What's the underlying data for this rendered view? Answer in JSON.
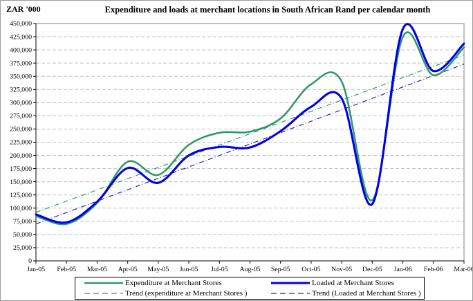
{
  "figure": {
    "unit_label": "ZAR '000",
    "title": "Expenditure and loads at merchant locations in South African Rand per calendar month"
  },
  "chart_data": {
    "type": "line",
    "title": "Expenditure and loads at merchant locations in South African Rand per calendar month",
    "ylabel": "ZAR '000",
    "xlabel": "",
    "ylim": [
      0,
      450000
    ],
    "ytick_step": 25000,
    "grid": "horizontal-dashed",
    "legend_position": "bottom-boxed",
    "categories": [
      "Jan-05",
      "Feb-05",
      "Mar-05",
      "Apr-05",
      "May-05",
      "Jun-05",
      "Jul-05",
      "Aug-05",
      "Sep-05",
      "Oct-05",
      "Nov-05",
      "Dec-05",
      "Jan-06",
      "Feb-06",
      "Mar-06"
    ],
    "series": [
      {
        "name": "Expenditure at Merchant Stores",
        "style": "solid-smooth",
        "color": "#339966",
        "width": 2.6,
        "values": [
          85000,
          70000,
          110000,
          188000,
          163000,
          220000,
          243000,
          245000,
          270000,
          335000,
          340000,
          115000,
          425000,
          352000,
          405000
        ]
      },
      {
        "name": "Loaded at Merchant Stores",
        "style": "solid-smooth",
        "color": "#0000EE",
        "width": 3.1,
        "values": [
          88000,
          73000,
          112000,
          176000,
          148000,
          200000,
          216000,
          215000,
          246000,
          292000,
          308000,
          108000,
          440000,
          360000,
          412000
        ]
      },
      {
        "name": "Trend (expenditure at Merchant Stores )",
        "style": "dashed-linear",
        "color": "#339966",
        "width": 1.2,
        "values_endpoints": [
          92000,
          390000
        ]
      },
      {
        "name": "Trend (Loaded at Merchant Stores )",
        "style": "dashed-linear",
        "color": "#2222CC",
        "width": 1.2,
        "values_endpoints": [
          70000,
          373000
        ]
      }
    ],
    "colors": {
      "gridline": "#bfbfbf",
      "axis": "#000000",
      "plot_border": "#808080"
    }
  }
}
